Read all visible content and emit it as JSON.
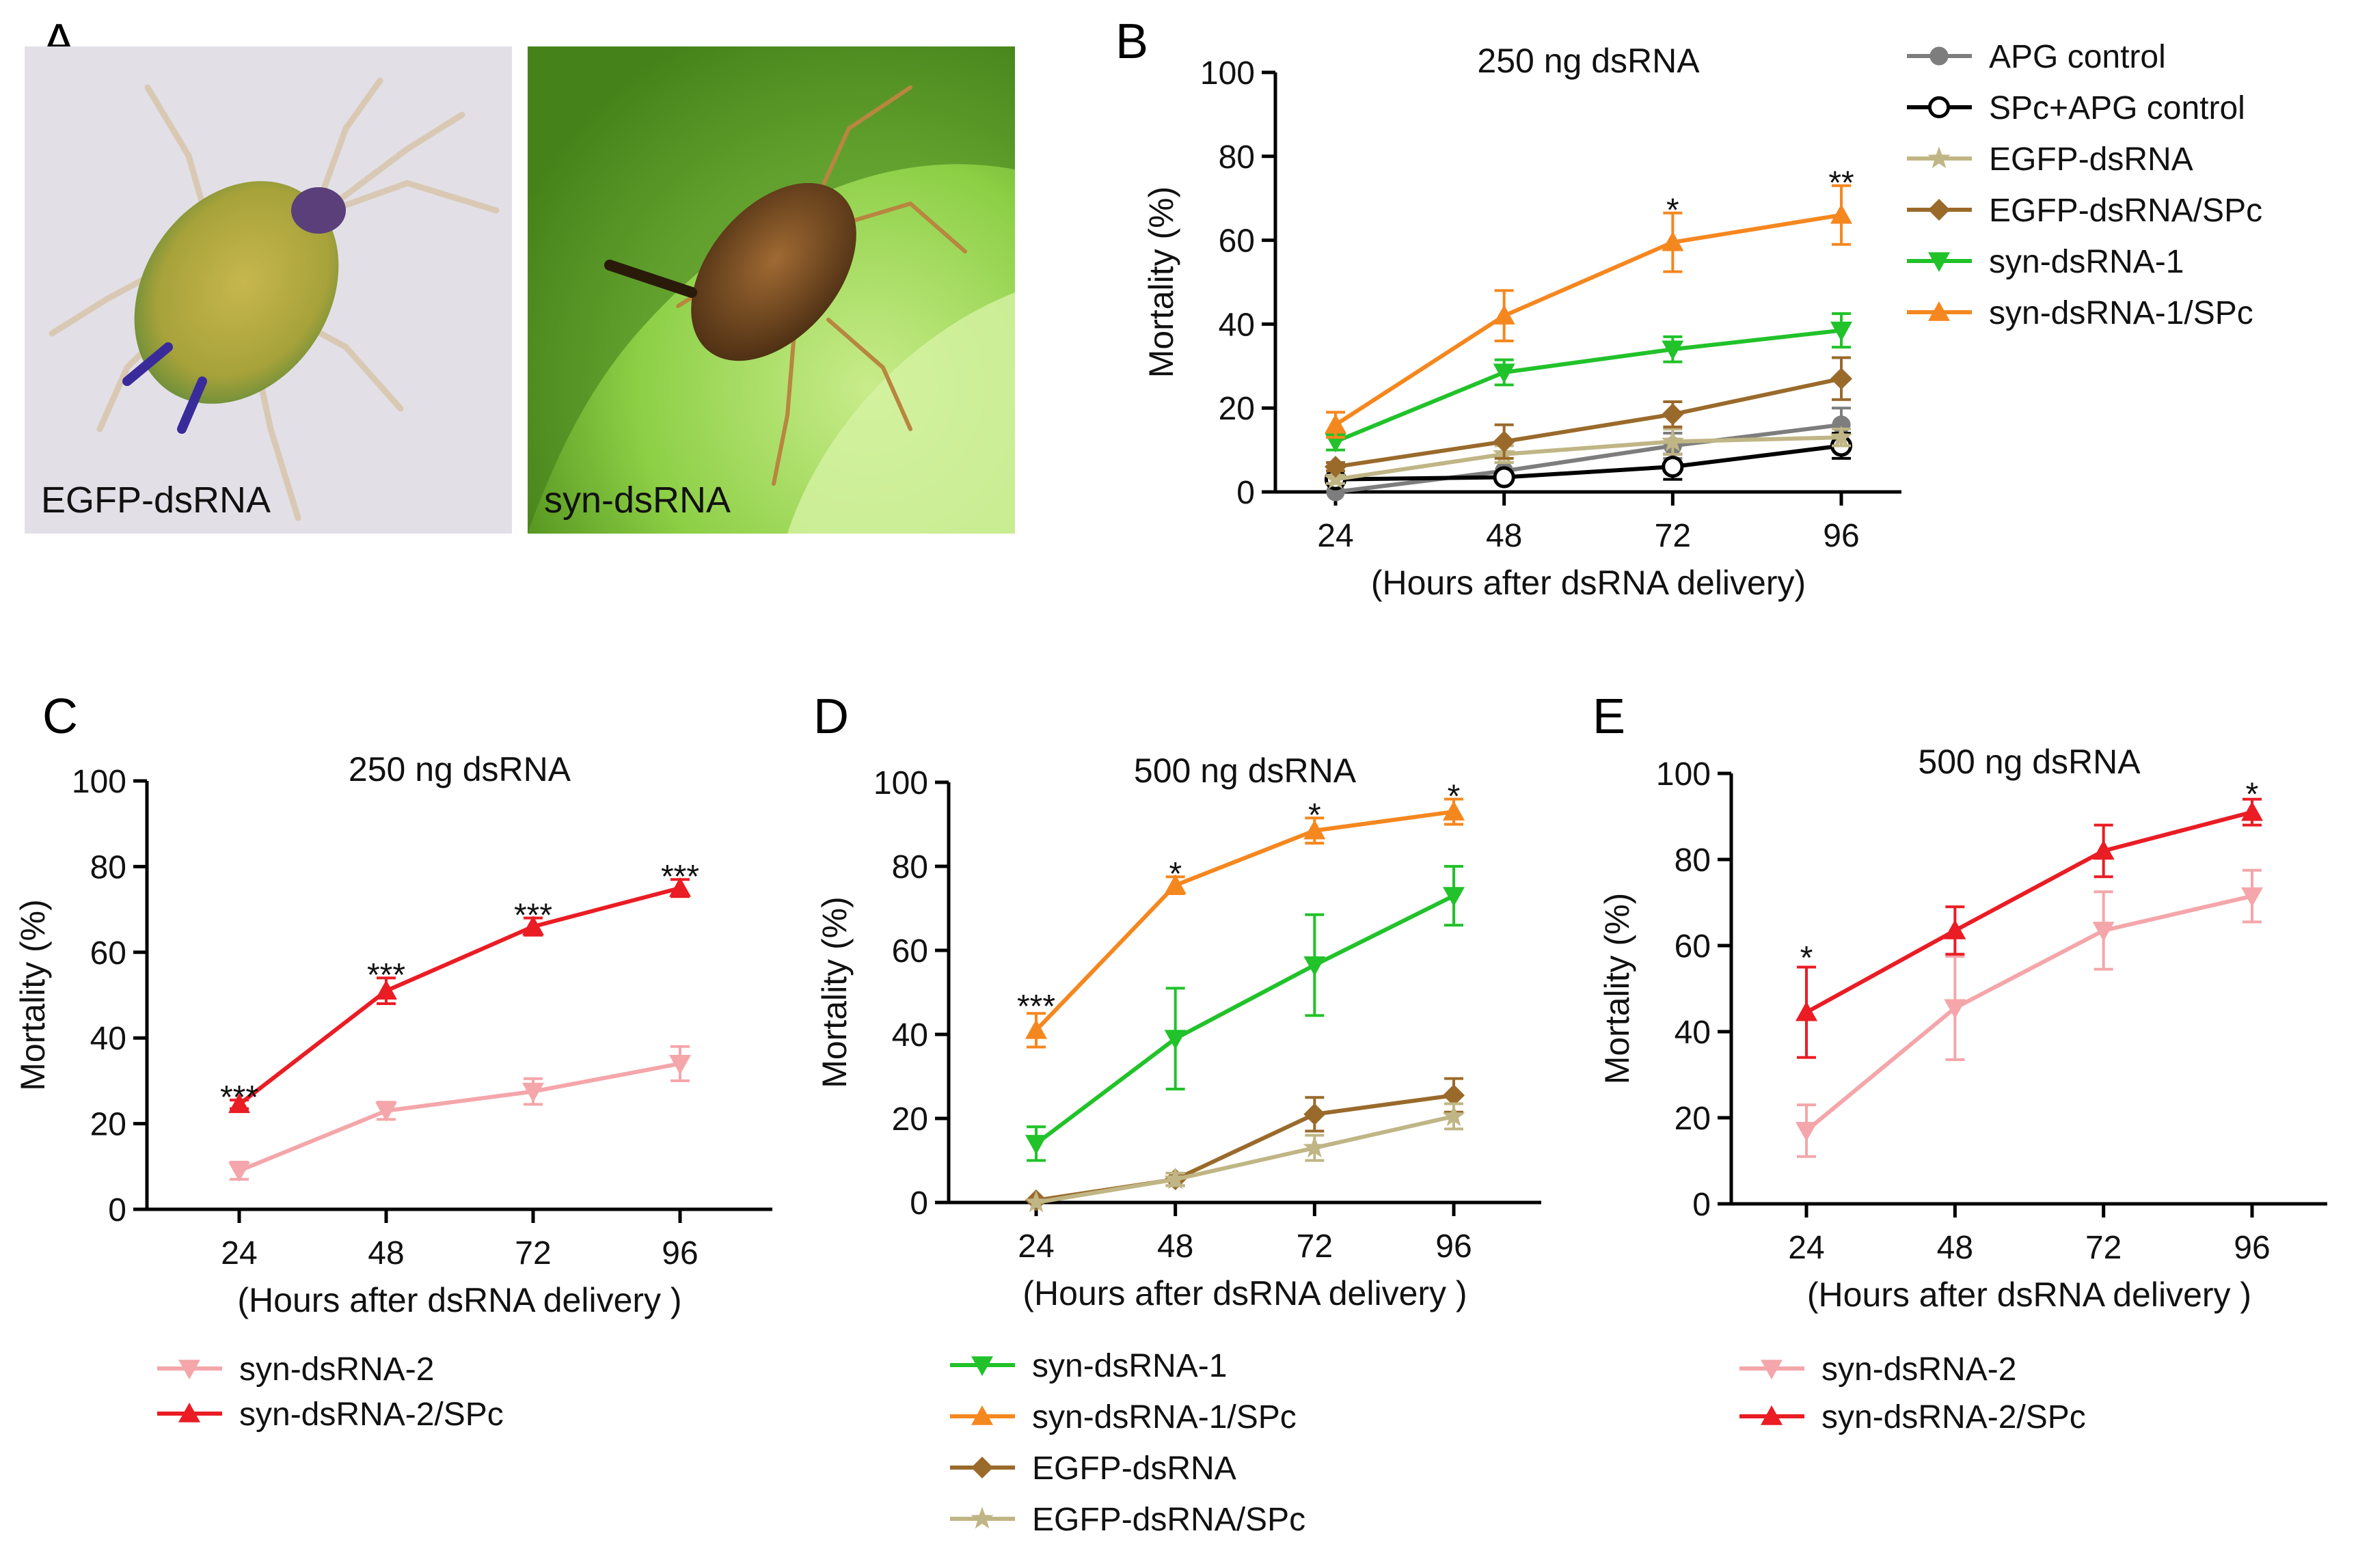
{
  "panel_labels": [
    "A",
    "B",
    "C",
    "D",
    "E"
  ],
  "photos": [
    {
      "label": "EGFP-dsRNA",
      "bg": "#e3e1e6",
      "subject": "aphid-green"
    },
    {
      "label": "syn-dsRNA",
      "bg": "#7dbf3a",
      "subject": "aphid-dead"
    }
  ],
  "colors": {
    "apg": "#7d7d7d",
    "spc_apg": "#000000",
    "egfp": "#c0b585",
    "egfp_spc": "#9a6a2b",
    "syn1": "#21c22a",
    "syn1_spc": "#f5871f",
    "syn2": "#f4a6aa",
    "syn2_spc": "#ea1c24"
  },
  "chart_data": [
    {
      "id": "B",
      "type": "line",
      "title": "250 ng dsRNA",
      "xlabel": "(Hours after dsRNA delivery)",
      "ylabel": "Mortality (%)",
      "ylim": [
        0,
        100
      ],
      "yticks": [
        0,
        20,
        40,
        60,
        80,
        100
      ],
      "categories": [
        24,
        48,
        72,
        96
      ],
      "legend": "right",
      "series": [
        {
          "name": "APG control",
          "color": "#7d7d7d",
          "marker": "circle",
          "values": [
            0,
            5,
            11,
            16
          ],
          "errors": [
            0,
            2,
            3,
            4
          ]
        },
        {
          "name": "SPc+APG control",
          "color": "#000000",
          "marker": "open-circle",
          "values": [
            3,
            3.5,
            6,
            11
          ],
          "errors": [
            0,
            1,
            3,
            3
          ]
        },
        {
          "name": "EGFP-dsRNA",
          "color": "#c0b585",
          "marker": "star",
          "values": [
            3,
            9,
            12,
            13
          ],
          "errors": [
            1,
            2,
            3,
            2
          ]
        },
        {
          "name": "EGFP-dsRNA/SPc",
          "color": "#9a6a2b",
          "marker": "diamond",
          "values": [
            6,
            12,
            18.5,
            27
          ],
          "errors": [
            1,
            4,
            3,
            5
          ]
        },
        {
          "name": "syn-dsRNA-1",
          "color": "#21c22a",
          "marker": "tri-down",
          "values": [
            12,
            28.5,
            34,
            38.5
          ],
          "errors": [
            2,
            3,
            3,
            4
          ]
        },
        {
          "name": "syn-dsRNA-1/SPc",
          "color": "#f5871f",
          "marker": "tri-up",
          "values": [
            16,
            42,
            59.5,
            66
          ],
          "errors": [
            3,
            6,
            7,
            7
          ]
        }
      ],
      "annotations": [
        {
          "x": 72,
          "y": 67.5,
          "text": "*"
        },
        {
          "x": 96,
          "y": 74,
          "text": "**"
        }
      ]
    },
    {
      "id": "C",
      "type": "line",
      "title": "250 ng dsRNA",
      "xlabel": "(Hours after dsRNA delivery  )",
      "ylabel": "Mortality (%)",
      "ylim": [
        0,
        100
      ],
      "yticks": [
        0,
        20,
        40,
        60,
        80,
        100
      ],
      "categories": [
        24,
        48,
        72,
        96
      ],
      "legend": "below",
      "series": [
        {
          "name": "syn-dsRNA-2",
          "color": "#f4a6aa",
          "marker": "tri-down",
          "values": [
            9,
            23,
            27.5,
            34
          ],
          "errors": [
            2,
            2,
            3,
            4
          ]
        },
        {
          "name": "syn-dsRNA-2/SPc",
          "color": "#ea1c24",
          "marker": "tri-up",
          "values": [
            24.5,
            51,
            66,
            75
          ],
          "errors": [
            1,
            3,
            2,
            2
          ]
        }
      ],
      "annotations": [
        {
          "x": 24,
          "y": 26.5,
          "text": "***"
        },
        {
          "x": 48,
          "y": 55,
          "text": "***"
        },
        {
          "x": 72,
          "y": 69,
          "text": "***"
        },
        {
          "x": 96,
          "y": 78,
          "text": "***"
        }
      ]
    },
    {
      "id": "D",
      "type": "line",
      "title": "500 ng dsRNA",
      "xlabel": "(Hours after dsRNA delivery  )",
      "ylabel": "Mortality (%)",
      "ylim": [
        0,
        100
      ],
      "yticks": [
        0,
        20,
        40,
        60,
        80,
        100
      ],
      "categories": [
        24,
        48,
        72,
        96
      ],
      "legend": "below",
      "series": [
        {
          "name": "syn-dsRNA-1",
          "color": "#21c22a",
          "marker": "tri-down",
          "values": [
            14,
            39,
            56.5,
            73
          ],
          "errors": [
            4,
            12,
            12,
            7
          ]
        },
        {
          "name": "syn-dsRNA-1/SPc",
          "color": "#f5871f",
          "marker": "tri-up",
          "values": [
            41,
            75.5,
            88.5,
            93
          ],
          "errors": [
            4,
            2,
            3,
            3
          ]
        },
        {
          "name": "EGFP-dsRNA",
          "color": "#9a6a2b",
          "marker": "diamond",
          "values": [
            0.5,
            5.5,
            21,
            25.5
          ],
          "errors": [
            0,
            1.5,
            4,
            4
          ]
        },
        {
          "name": "EGFP-dsRNA/SPc",
          "color": "#c0b585",
          "marker": "star",
          "values": [
            0,
            5.5,
            13,
            20.5
          ],
          "errors": [
            0,
            1.5,
            3,
            3
          ]
        }
      ],
      "annotations": [
        {
          "x": 24,
          "y": 47,
          "text": "***"
        },
        {
          "x": 48,
          "y": 78.5,
          "text": "*"
        },
        {
          "x": 72,
          "y": 92.5,
          "text": "*"
        },
        {
          "x": 96,
          "y": 97,
          "text": "*"
        }
      ]
    },
    {
      "id": "E",
      "type": "line",
      "title": "500 ng dsRNA",
      "xlabel": "(Hours after dsRNA delivery  )",
      "ylabel": "Mortality (%)",
      "ylim": [
        0,
        100
      ],
      "yticks": [
        0,
        20,
        40,
        60,
        80,
        100
      ],
      "categories": [
        24,
        48,
        72,
        96
      ],
      "legend": "below",
      "series": [
        {
          "name": "syn-dsRNA-2",
          "color": "#f4a6aa",
          "marker": "tri-down",
          "values": [
            17,
            45.5,
            63.5,
            71.5
          ],
          "errors": [
            6,
            12,
            9,
            6
          ]
        },
        {
          "name": "syn-dsRNA-2/SPc",
          "color": "#ea1c24",
          "marker": "tri-up",
          "values": [
            44.5,
            63.5,
            82,
            91
          ],
          "errors": [
            10.5,
            5.5,
            6,
            3
          ]
        }
      ],
      "annotations": [
        {
          "x": 24,
          "y": 57.5,
          "text": "*"
        },
        {
          "x": 96,
          "y": 95.5,
          "text": "*"
        }
      ]
    }
  ]
}
